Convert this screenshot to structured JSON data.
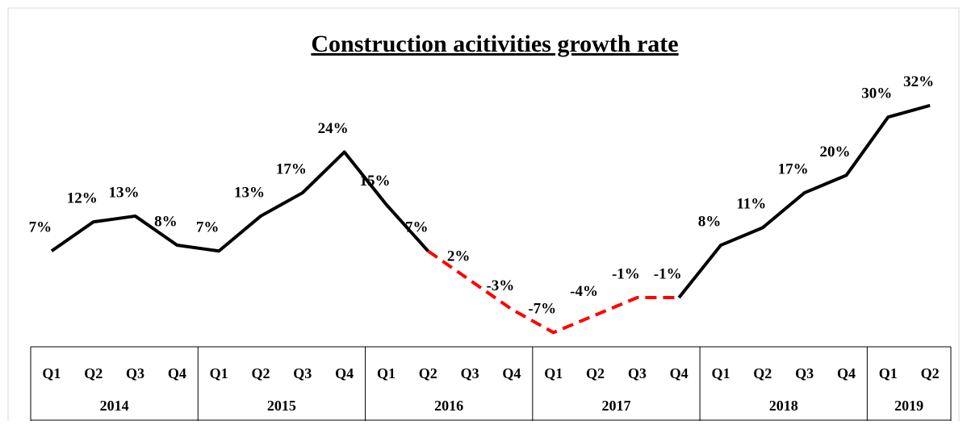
{
  "chart_data": {
    "type": "line",
    "title": "Construction acitivities growth rate",
    "categories": [
      "Q1",
      "Q2",
      "Q3",
      "Q4",
      "Q1",
      "Q2",
      "Q3",
      "Q4",
      "Q1",
      "Q2",
      "Q3",
      "Q4",
      "Q1",
      "Q2",
      "Q3",
      "Q4",
      "Q1",
      "Q2",
      "Q3",
      "Q4",
      "Q1",
      "Q2"
    ],
    "groups": [
      {
        "label": "2014",
        "span": 4
      },
      {
        "label": "2015",
        "span": 4
      },
      {
        "label": "2016",
        "span": 4
      },
      {
        "label": "2017",
        "span": 4
      },
      {
        "label": "2018",
        "span": 4
      },
      {
        "label": "2019",
        "span": 2
      }
    ],
    "ylim": [
      -10,
      40
    ],
    "series": [
      {
        "color": "#000000",
        "dashed": false,
        "values": [
          7,
          12,
          13,
          8,
          7,
          13,
          17,
          24,
          15,
          7,
          null,
          null,
          null,
          null,
          null,
          -1,
          8,
          11,
          17,
          20,
          30,
          32
        ],
        "value_labels": [
          "7%",
          "12%",
          "13%",
          "8%",
          "7%",
          "13%",
          "17%",
          "24%",
          "15%",
          "7%",
          null,
          null,
          null,
          null,
          null,
          "-1%",
          "8%",
          "11%",
          "17%",
          "20%",
          "30%",
          "32%"
        ]
      },
      {
        "color": "#ff0000",
        "dashed": true,
        "values": [
          null,
          null,
          null,
          null,
          null,
          null,
          null,
          null,
          null,
          7,
          2,
          -3,
          -7,
          -4,
          -1,
          -1,
          null,
          null,
          null,
          null,
          null,
          null
        ],
        "value_labels": [
          null,
          null,
          null,
          null,
          null,
          null,
          null,
          null,
          null,
          null,
          "2%",
          "-3%",
          "-7%",
          "-4%",
          "-1%",
          null,
          null,
          null,
          null,
          null,
          null,
          null
        ]
      }
    ]
  }
}
